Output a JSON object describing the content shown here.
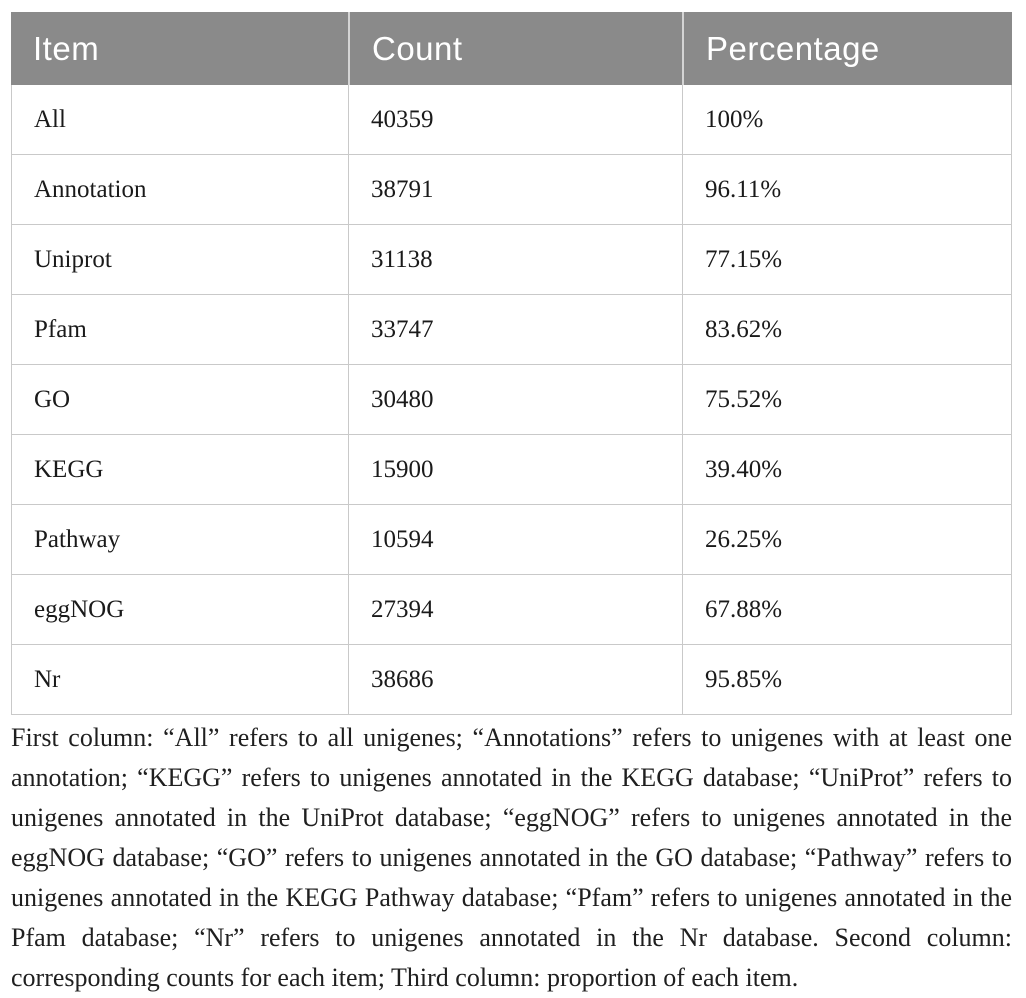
{
  "table": {
    "headers": [
      "Item",
      "Count",
      "Percentage"
    ],
    "rows": [
      {
        "item": "All",
        "count": "40359",
        "percentage": "100%"
      },
      {
        "item": "Annotation",
        "count": "38791",
        "percentage": "96.11%"
      },
      {
        "item": "Uniprot",
        "count": "31138",
        "percentage": "77.15%"
      },
      {
        "item": "Pfam",
        "count": "33747",
        "percentage": "83.62%"
      },
      {
        "item": "GO",
        "count": "30480",
        "percentage": "75.52%"
      },
      {
        "item": "KEGG",
        "count": "15900",
        "percentage": "39.40%"
      },
      {
        "item": "Pathway",
        "count": "10594",
        "percentage": "26.25%"
      },
      {
        "item": "eggNOG",
        "count": "27394",
        "percentage": "67.88%"
      },
      {
        "item": "Nr",
        "count": "38686",
        "percentage": "95.85%"
      }
    ]
  },
  "footnote": {
    "text": "First column: “All” refers to all unigenes; “Annotations” refers to unigenes with at least one annotation; “KEGG” refers to unigenes annotated in the KEGG database; “UniProt” refers to unigenes annotated in the UniProt database; “eggNOG” refers to unigenes annotated in the eggNOG database; “GO” refers to unigenes annotated in the GO database; “Pathway” refers to unigenes annotated in the KEGG Pathway database; “Pfam” refers to unigenes annotated in the Pfam database; “Nr” refers to unigenes annotated in the Nr database. Second column: corresponding counts for each item; Third column: proportion of each item."
  },
  "colors": {
    "header_background": "#8a8a8a",
    "header_text": "#ffffff",
    "grid_border": "#c9c9c9",
    "body_text": "#1a1a1a"
  }
}
